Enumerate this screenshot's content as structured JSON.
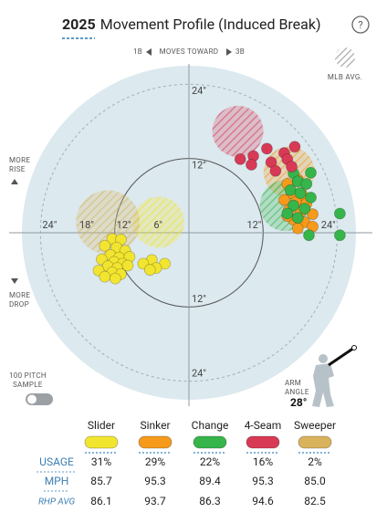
{
  "header": {
    "year": "2025",
    "title": "Movement Profile (Induced Break)",
    "help": "?"
  },
  "chart_data": {
    "type": "scatter",
    "x_axis_left": "1B",
    "x_axis_label": "MOVES TOWARD",
    "x_axis_right": "3B",
    "y_axis_top": [
      "MORE",
      "RISE"
    ],
    "y_axis_bottom": [
      "MORE",
      "DROP"
    ],
    "legend_avg": "MLB AVG.",
    "xlim": [
      -27,
      27
    ],
    "ylim": [
      -27,
      27
    ],
    "xticks": [
      {
        "value": -24,
        "label": "24\""
      },
      {
        "value": -18,
        "label": "18\""
      },
      {
        "value": -12,
        "label": "12\""
      },
      {
        "value": -6,
        "label": "6\""
      },
      {
        "value": 12,
        "label": "12\""
      },
      {
        "value": 24,
        "label": "24\""
      }
    ],
    "yticks": [
      {
        "value": 24,
        "label": "24\""
      },
      {
        "value": 12,
        "label": "12\""
      },
      {
        "value": -12,
        "label": "12\""
      },
      {
        "value": -24,
        "label": "24\""
      }
    ],
    "series": [
      {
        "name": "Slider",
        "color": "#f2e530",
        "x": [
          -12.4,
          -11.0,
          -13.6,
          -11.7,
          -10.3,
          -12.7,
          -11.3,
          -9.6,
          -14.1,
          -12.1,
          -10.7,
          -13.1,
          -11.6,
          -9.9,
          -14.6,
          -12.4,
          -11.0,
          -13.6,
          -11.9,
          -6.0,
          -7.4,
          -3.9,
          -5.3,
          -6.3
        ],
        "y": [
          -1.0,
          -1.1,
          -2.1,
          -2.4,
          -2.9,
          -3.6,
          -4.0,
          -3.9,
          -4.3,
          -4.7,
          -5.0,
          -5.4,
          -5.7,
          -5.3,
          -6.1,
          -6.4,
          -6.7,
          -7.1,
          -7.4,
          -4.4,
          -5.0,
          -5.0,
          -5.7,
          -6.0
        ],
        "mlb_avg": {
          "x": -4.9,
          "y": 1.7
        }
      },
      {
        "name": "Sinker",
        "color": "#f59a1b",
        "x": [
          15.9,
          17.6,
          16.6,
          18.3,
          15.4,
          17.3,
          19.0,
          16.1,
          18.0,
          20.0,
          16.9,
          18.7,
          17.6,
          20.0,
          15.9
        ],
        "y": [
          7.9,
          8.6,
          6.4,
          6.1,
          5.3,
          5.0,
          4.7,
          3.6,
          3.3,
          3.0,
          2.1,
          1.7,
          0.7,
          1.0,
          2.7
        ],
        "mlb_avg": {
          "x": 16.2,
          "y": 9.8
        }
      },
      {
        "name": "Change",
        "color": "#35b54a",
        "x": [
          16.9,
          19.7,
          17.6,
          19.0,
          16.4,
          18.0,
          19.7,
          16.9,
          18.7,
          15.9,
          17.6,
          24.4,
          24.4,
          19.4
        ],
        "y": [
          9.6,
          9.7,
          8.3,
          7.9,
          6.9,
          6.4,
          5.7,
          4.4,
          3.9,
          3.1,
          2.4,
          3.1,
          -0.4,
          -0.4
        ],
        "mlb_avg": {
          "x": 15.6,
          "y": 4.4
        }
      },
      {
        "name": "4-Seam",
        "color": "#d83a56",
        "x": [
          8.3,
          10.4,
          12.6,
          10.1,
          13.3,
          15.4,
          17.1,
          15.9,
          14.0,
          16.6
        ],
        "y": [
          11.9,
          12.4,
          13.6,
          11.0,
          11.4,
          12.9,
          13.9,
          11.9,
          10.0,
          10.7
        ],
        "mlb_avg": {
          "x": 7.9,
          "y": 16.4
        }
      },
      {
        "name": "Sweeper",
        "color": "#d9b35c",
        "x": [],
        "y": [],
        "mlb_avg": {
          "x": -13.1,
          "y": 1.7
        }
      }
    ]
  },
  "sample": {
    "label": [
      "100 PITCH",
      "SAMPLE"
    ]
  },
  "arm_angle": {
    "label": [
      "ARM",
      "ANGLE"
    ],
    "value": "28°"
  },
  "table": {
    "rows": [
      {
        "label": "USAGE",
        "cells": [
          "31%",
          "29%",
          "22%",
          "16%",
          "2%"
        ]
      },
      {
        "label": "MPH",
        "cells": [
          "85.7",
          "95.3",
          "89.4",
          "95.3",
          "85.0"
        ]
      },
      {
        "label": "RHP AVG",
        "cells": [
          "86.1",
          "93.7",
          "86.3",
          "94.6",
          "82.5"
        ]
      }
    ]
  }
}
